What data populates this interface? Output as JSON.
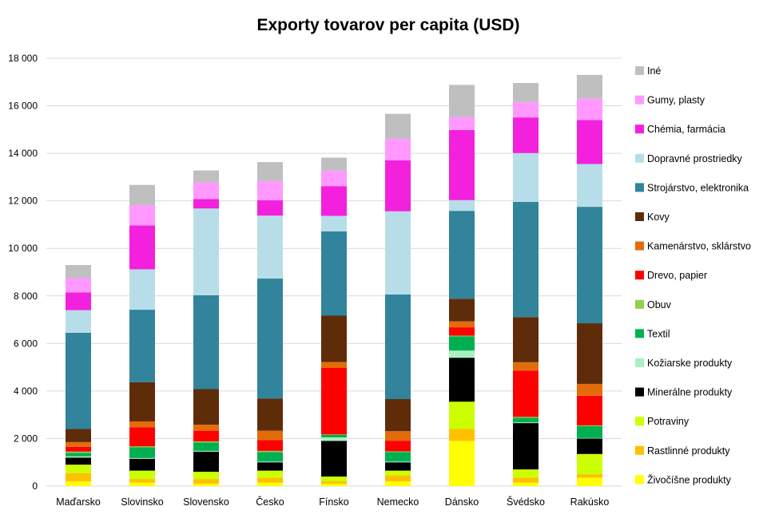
{
  "chart_data": {
    "type": "bar",
    "stacked": true,
    "title": "Exporty tovarov per capita (USD)",
    "xlabel": "",
    "ylabel": "",
    "ylim": [
      0,
      18000
    ],
    "yticks": [
      0,
      2000,
      4000,
      6000,
      8000,
      10000,
      12000,
      14000,
      16000,
      18000
    ],
    "ytick_labels": [
      "0",
      "2 000",
      "4 000",
      "6 000",
      "8 000",
      "10 000",
      "12 000",
      "14 000",
      "16 000",
      "18 000"
    ],
    "grid": true,
    "legend": "right",
    "categories": [
      "Maďarsko",
      "Slovinsko",
      "Slovensko",
      "Česko",
      "Fínsko",
      "Nemecko",
      "Dánsko",
      "Švédsko",
      "Rakúsko"
    ],
    "series": [
      {
        "name": "Živočíšne produkty",
        "color": "#ffff00",
        "values": [
          200,
          150,
          100,
          150,
          100,
          200,
          1900,
          150,
          350
        ]
      },
      {
        "name": "Rastlinné produkty",
        "color": "#ffc000",
        "values": [
          350,
          150,
          200,
          200,
          100,
          250,
          500,
          200,
          150
        ]
      },
      {
        "name": "Potraviny",
        "color": "#ccff00",
        "values": [
          350,
          350,
          300,
          300,
          200,
          200,
          1150,
          350,
          850
        ]
      },
      {
        "name": "Minerálne produkty",
        "color": "#000000",
        "values": [
          300,
          500,
          850,
          350,
          1500,
          350,
          1850,
          1950,
          650
        ]
      },
      {
        "name": "Kožiarske produkty",
        "color": "#a9f0c0",
        "values": [
          50,
          30,
          30,
          30,
          150,
          30,
          300,
          30,
          20
        ]
      },
      {
        "name": "Textil",
        "color": "#00b050",
        "values": [
          150,
          450,
          350,
          400,
          100,
          400,
          600,
          200,
          500
        ]
      },
      {
        "name": "Obuv",
        "color": "#92d050",
        "values": [
          50,
          40,
          50,
          50,
          20,
          30,
          30,
          30,
          30
        ]
      },
      {
        "name": "Drevo, papier",
        "color": "#ff0000",
        "values": [
          200,
          800,
          450,
          450,
          2800,
          450,
          350,
          1950,
          1250
        ]
      },
      {
        "name": "Kamenárstvo, sklárstvo",
        "color": "#e36c0a",
        "values": [
          200,
          250,
          250,
          400,
          250,
          400,
          250,
          350,
          500
        ]
      },
      {
        "name": "Kovy",
        "color": "#5f2c0a",
        "values": [
          550,
          1650,
          1500,
          1350,
          1950,
          1350,
          950,
          1900,
          2550
        ]
      },
      {
        "name": "Strojárstvo, elektronika",
        "color": "#31849b",
        "values": [
          4050,
          3050,
          3950,
          5050,
          3550,
          4400,
          3700,
          4850,
          4900
        ]
      },
      {
        "name": "Dopravné prostriedky",
        "color": "#b7dee8",
        "values": [
          950,
          1700,
          3650,
          2650,
          650,
          3500,
          450,
          2050,
          1800
        ]
      },
      {
        "name": "Chémia, farmácia",
        "color": "#f320de",
        "values": [
          750,
          1850,
          400,
          650,
          1250,
          2150,
          2950,
          1500,
          1850
        ]
      },
      {
        "name": "Gumy, plasty",
        "color": "#ff99ff",
        "values": [
          600,
          850,
          700,
          800,
          650,
          900,
          550,
          650,
          900
        ]
      },
      {
        "name": "Iné",
        "color": "#bfbfbf",
        "values": [
          550,
          850,
          500,
          800,
          550,
          1050,
          1350,
          800,
          1000
        ]
      }
    ]
  }
}
